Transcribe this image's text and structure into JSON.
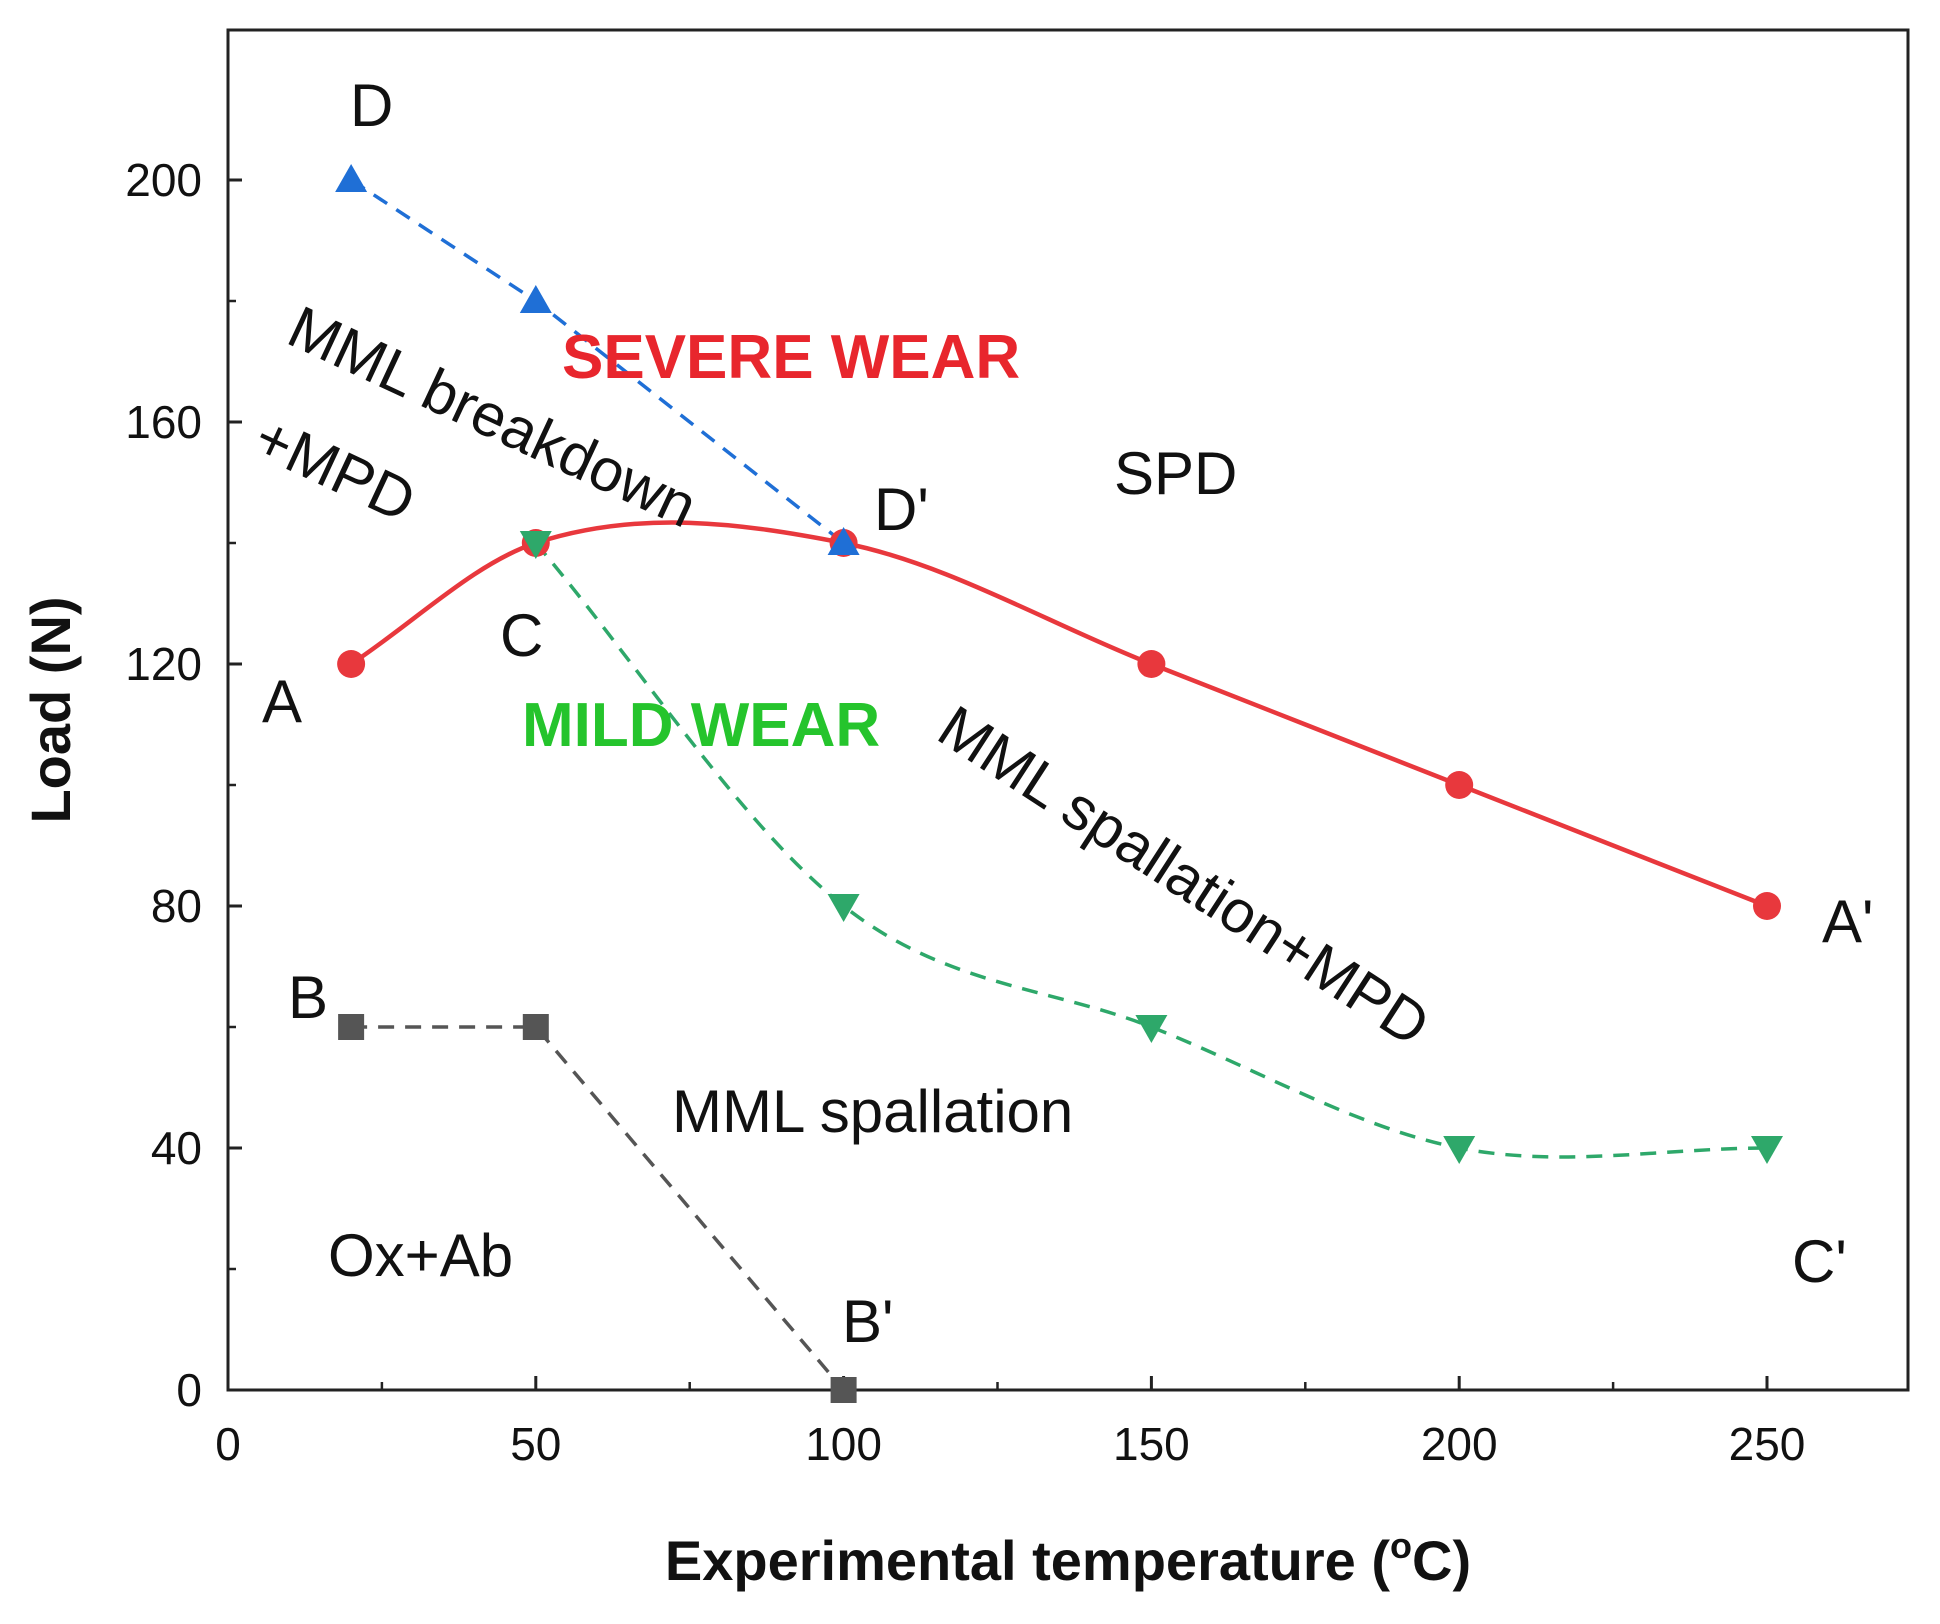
{
  "chart_data": {
    "type": "line",
    "title": "",
    "xlabel": "Experimental temperature (°C)",
    "xlabel_main": "Experimental temperature (",
    "xlabel_unit_sup": "o",
    "xlabel_unit_end": "C)",
    "ylabel": "Load (N)",
    "xlim": [
      0,
      275
    ],
    "ylim": [
      0,
      225
    ],
    "xticks": [
      0,
      50,
      100,
      150,
      200,
      250
    ],
    "yticks": [
      0,
      40,
      80,
      120,
      160,
      200
    ],
    "grid": false,
    "series": [
      {
        "name": "A-A'",
        "marker": "circle",
        "color": "#e8383d",
        "style": "solid",
        "curve": "smooth",
        "x": [
          20,
          50,
          100,
          150,
          200,
          250
        ],
        "y": [
          120,
          140,
          140,
          120,
          100,
          80
        ],
        "start_label": "A",
        "end_label": "A'"
      },
      {
        "name": "B-B'",
        "marker": "square",
        "color": "#555555",
        "style": "dashed",
        "curve": "linear",
        "x": [
          20,
          50,
          100
        ],
        "y": [
          60,
          60,
          0
        ],
        "start_label": "B",
        "end_label": "B'"
      },
      {
        "name": "C-C'",
        "marker": "triangle-down",
        "color": "#2ea86a",
        "style": "dashed",
        "curve": "smooth",
        "x": [
          50,
          100,
          150,
          200,
          250
        ],
        "y": [
          140,
          80,
          60,
          40,
          40
        ],
        "start_label": "C",
        "end_label": "C'"
      },
      {
        "name": "D-D'",
        "marker": "triangle-up",
        "color": "#1f6fd6",
        "style": "dashed",
        "curve": "linear",
        "x": [
          20,
          50,
          100
        ],
        "y": [
          200,
          180,
          140
        ],
        "start_label": "D",
        "end_label": "D'"
      }
    ],
    "annotations": {
      "severe_wear": "SEVERE WEAR",
      "mild_wear": "MILD WEAR",
      "spd": "SPD",
      "mml_breakdown": "MML breakdown",
      "plus_mpd": "+MPD",
      "mml_spallation_mpd": "MML spallation+MPD",
      "mml_spallation": "MML spallation",
      "ox_ab": "Ox+Ab"
    },
    "annotation_colors": {
      "severe_wear": "#e8262d",
      "mild_wear": "#25c42c"
    }
  }
}
